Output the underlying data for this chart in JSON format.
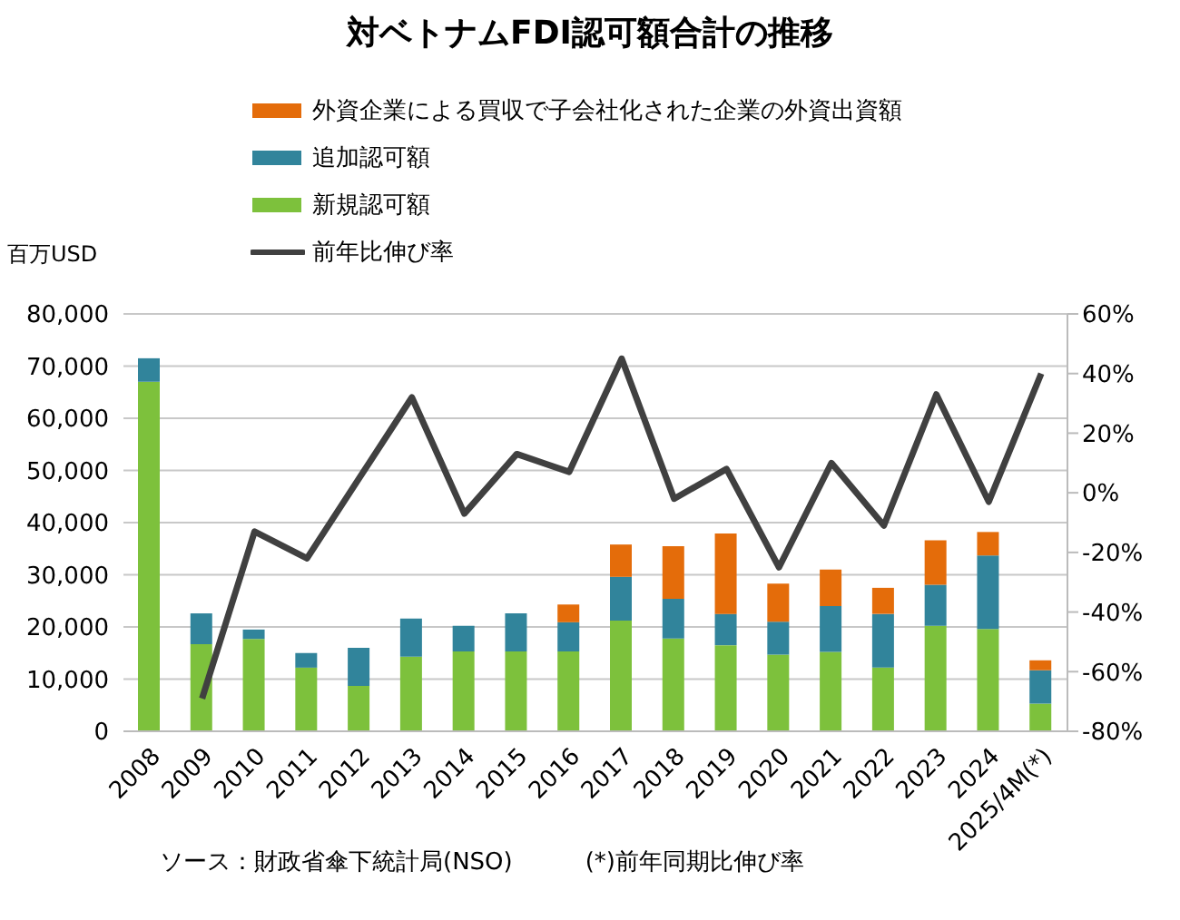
{
  "chart_data": {
    "type": "bar",
    "title": "対ベトナムFDI認可額合計の推移",
    "ylabel": "百万USD",
    "stacked": true,
    "grid": "y",
    "legend": "top",
    "categories": [
      "2008",
      "2009",
      "2010",
      "2011",
      "2012",
      "2013",
      "2014",
      "2015",
      "2016",
      "2017",
      "2018",
      "2019",
      "2020",
      "2021",
      "2022",
      "2023",
      "2024",
      "2025/4M(*)"
    ],
    "series": [
      {
        "name": "新規認可額",
        "color": "#7dc13c",
        "values": [
          67000,
          16700,
          17700,
          12200,
          8700,
          14300,
          15300,
          15300,
          15300,
          21200,
          17800,
          16500,
          14700,
          15200,
          12200,
          20200,
          19600,
          5300
        ]
      },
      {
        "name": "追加認可額",
        "color": "#31849b",
        "values": [
          4500,
          5900,
          1800,
          2800,
          7300,
          7300,
          4900,
          7300,
          5600,
          8400,
          7600,
          6000,
          6300,
          8800,
          10300,
          7900,
          14100,
          6400
        ]
      },
      {
        "name": "外資企業による買収で子会社化された企業の外資出資額",
        "color": "#e46c0a",
        "values": [
          null,
          null,
          null,
          null,
          null,
          null,
          null,
          null,
          3400,
          6200,
          10100,
          15400,
          7300,
          7000,
          5000,
          8500,
          4500,
          1900
        ]
      },
      {
        "name": "前年比伸び率",
        "type": "line",
        "axis": "y2",
        "color": "#404040",
        "values": [
          null,
          -69,
          -13,
          -22,
          5,
          32,
          -7,
          13,
          7,
          45,
          -2,
          8,
          -25,
          10,
          -11,
          33,
          -3,
          40
        ]
      }
    ],
    "ylim": [
      0,
      80000
    ],
    "yticks": [
      0,
      {
        "value": 10000,
        "label": "10,000"
      },
      {
        "value": 20000,
        "label": "20,000"
      },
      {
        "value": 30000,
        "label": "30,000"
      },
      {
        "value": 40000,
        "label": "40,000"
      },
      {
        "value": 50000,
        "label": "50,000"
      },
      {
        "value": 60000,
        "label": "60,000"
      },
      {
        "value": 70000,
        "label": "70,000"
      },
      {
        "value": 80000,
        "label": "80,000"
      }
    ],
    "y2lim": [
      -80,
      60
    ],
    "y2ticks": [
      {
        "value": -80,
        "label": "-80%"
      },
      {
        "value": -60,
        "label": "-60%"
      },
      {
        "value": -40,
        "label": "-40%"
      },
      {
        "value": -20,
        "label": "-20%"
      },
      {
        "value": 0,
        "label": "0%"
      },
      {
        "value": 20,
        "label": "20%"
      },
      {
        "value": 40,
        "label": "40%"
      },
      {
        "value": 60,
        "label": "60%"
      }
    ],
    "marker": "none",
    "annotations": [
      "ソース：財政省傘下統計局(NSO)",
      "(*)前年同期比伸び率"
    ]
  }
}
